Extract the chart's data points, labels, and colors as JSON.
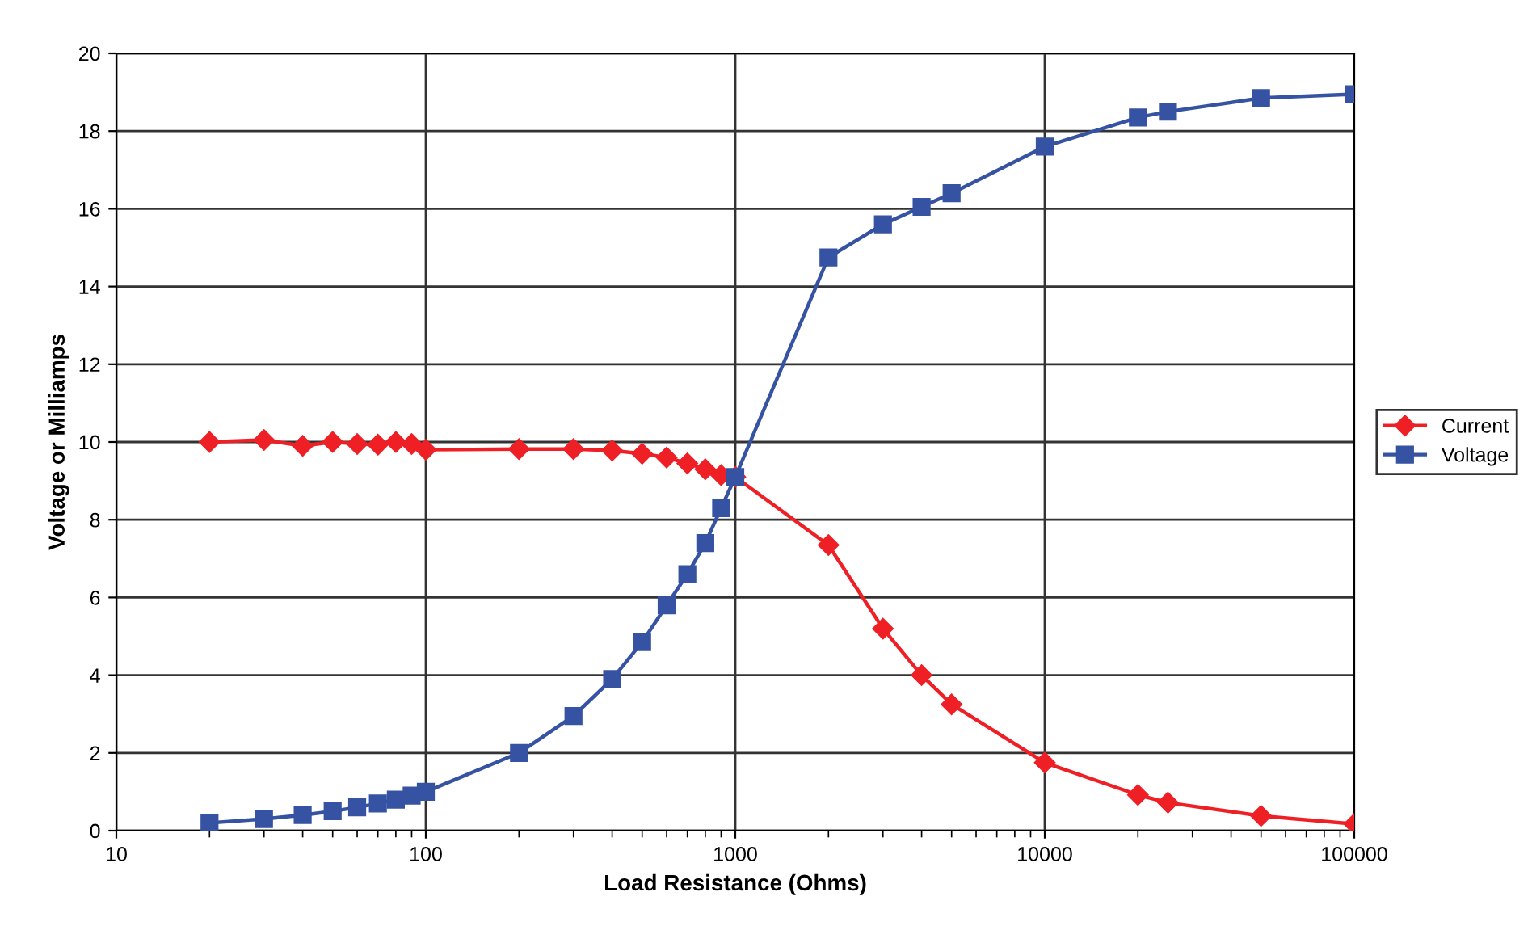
{
  "chart_data": {
    "type": "line",
    "xlabel": "Load Resistance (Ohms)",
    "ylabel": "Voltage or Milliamps",
    "log": "x",
    "grid": true,
    "legend": "right",
    "x": [
      20,
      30,
      40,
      50,
      60,
      70,
      80,
      90,
      100,
      200,
      300,
      400,
      500,
      600,
      700,
      800,
      900,
      1000,
      2000,
      3000,
      4000,
      5000,
      10000,
      20000,
      25000,
      50000,
      100000
    ],
    "series": [
      {
        "name": "Current",
        "color": "#ee2026",
        "marker": "diamond",
        "values": [
          10,
          10.05,
          9.9,
          10,
          9.95,
          9.93,
          10,
          9.95,
          9.8,
          9.82,
          9.82,
          9.78,
          9.7,
          9.6,
          9.45,
          9.3,
          9.15,
          9.1,
          7.35,
          5.2,
          4.0,
          3.25,
          1.75,
          0.92,
          0.72,
          0.38,
          0.17
        ]
      },
      {
        "name": "Voltage",
        "color": "#3653a3",
        "marker": "square",
        "values": [
          0.2,
          0.3,
          0.4,
          0.5,
          0.6,
          0.7,
          0.8,
          0.9,
          1.0,
          2.0,
          2.95,
          3.9,
          4.85,
          5.8,
          6.6,
          7.4,
          8.3,
          9.1,
          14.75,
          15.6,
          16.05,
          16.4,
          17.6,
          18.35,
          18.5,
          18.85,
          18.95
        ]
      }
    ],
    "xlim": [
      10,
      100000
    ],
    "xticks": [
      10,
      100,
      1000,
      10000,
      100000
    ],
    "ylim": [
      0,
      20
    ],
    "yticks": [
      0,
      2,
      4,
      6,
      8,
      10,
      12,
      14,
      16,
      18,
      20
    ]
  }
}
